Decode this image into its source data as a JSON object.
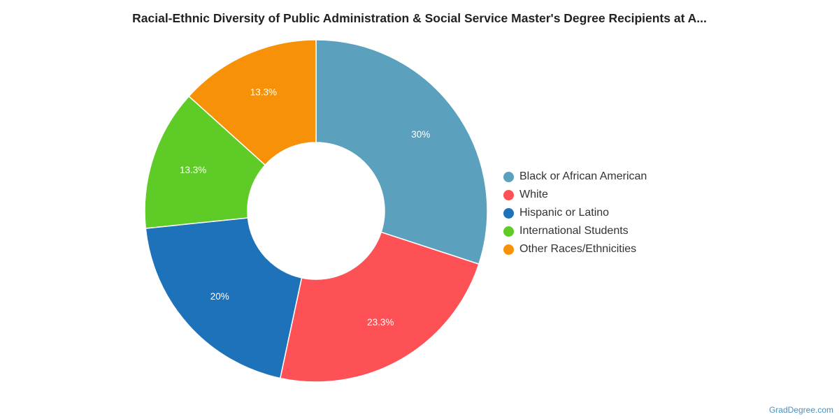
{
  "chart_data": {
    "type": "pie",
    "title": "Racial-Ethnic Diversity of Public Administration & Social Service Master's Degree Recipients at A...",
    "donut": true,
    "legend_position": "right",
    "categories": [
      "Black or African American",
      "White",
      "Hispanic or Latino",
      "International Students",
      "Other Races/Ethnicities"
    ],
    "values": [
      30,
      23.3,
      20,
      13.3,
      13.3
    ],
    "labels": [
      "30%",
      "23.3%",
      "20%",
      "13.3%",
      "13.3%"
    ],
    "colors": [
      "#5ba1be",
      "#fd5155",
      "#1e72b9",
      "#5fcb27",
      "#f79208"
    ]
  },
  "credit": "GradDegree.com"
}
